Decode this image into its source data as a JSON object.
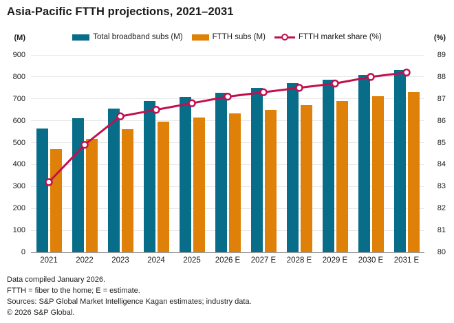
{
  "title": "Asia-Pacific FTTH projections, 2021–2031",
  "axes": {
    "left_unit": "(M)",
    "right_unit": "(%)",
    "left_ticks": [
      0,
      100,
      200,
      300,
      400,
      500,
      600,
      700,
      800,
      900
    ],
    "right_ticks": [
      80,
      81,
      82,
      83,
      84,
      85,
      86,
      87,
      88,
      89
    ]
  },
  "legend": [
    {
      "label": "Total broadband subs (M)"
    },
    {
      "label": "FTTH subs (M)"
    },
    {
      "label": "FTTH market share (%)"
    }
  ],
  "colors": {
    "total_bar": "#076d89",
    "ftth_bar": "#df8108",
    "share_line": "#c2104f",
    "marker_fill": "#ffffff",
    "grid": "#e8e8e8",
    "axis_line": "#9a9a9a",
    "text": "#1a1a1a"
  },
  "chart_data": {
    "type": "bar",
    "subtype": "grouped bars with overlaid line on secondary axis",
    "categories": [
      "2021",
      "2022",
      "2023",
      "2024",
      "2025",
      "2026 E",
      "2027 E",
      "2028 E",
      "2029 E",
      "2030 E",
      "2031 E"
    ],
    "series": [
      {
        "name": "Total broadband subs (M)",
        "type": "bar",
        "axis": "left",
        "color_key": "total_bar",
        "values": [
          565,
          610,
          655,
          690,
          710,
          728,
          750,
          770,
          787,
          810,
          830
        ]
      },
      {
        "name": "FTTH subs (M)",
        "type": "bar",
        "axis": "left",
        "color_key": "ftth_bar",
        "values": [
          470,
          518,
          562,
          595,
          615,
          632,
          650,
          670,
          690,
          712,
          732
        ]
      },
      {
        "name": "FTTH market share (%)",
        "type": "line",
        "axis": "right",
        "color_key": "share_line",
        "values": [
          83.2,
          84.9,
          86.2,
          86.5,
          86.8,
          87.1,
          87.3,
          87.5,
          87.7,
          88.0,
          88.2
        ]
      }
    ],
    "title": "Asia-Pacific FTTH projections, 2021–2031",
    "xlabel": "",
    "ylabel_left": "(M)",
    "ylabel_right": "(%)",
    "ylim_left": [
      0,
      900
    ],
    "ylim_right": [
      80,
      89
    ],
    "grid": "horizontal only",
    "legend_position": "top center"
  },
  "footer": {
    "lines": [
      "Data compiled January 2026.",
      "FTTH = fiber to the home; E = estimate.",
      "Sources: S&P Global Market Intelligence Kagan estimates; industry data.",
      "© 2026 S&P Global."
    ]
  }
}
